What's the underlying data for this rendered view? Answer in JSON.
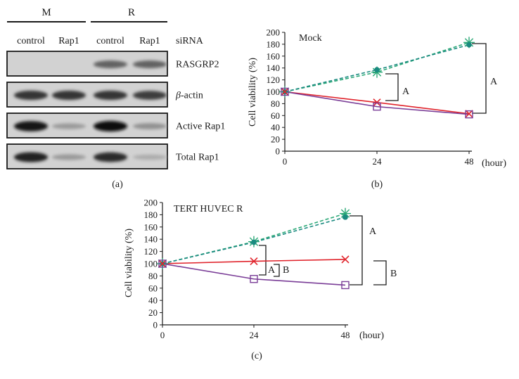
{
  "panel_a": {
    "label": "(a)",
    "groups": [
      "M",
      "R"
    ],
    "lanes": [
      "control",
      "Rap1",
      "control",
      "Rap1"
    ],
    "sirna_label": "siRNA",
    "rows": [
      {
        "name": "RASGRP2",
        "intensity": [
          0.0,
          0.0,
          0.55,
          0.55
        ]
      },
      {
        "name": "β-actin",
        "intensity": [
          0.8,
          0.8,
          0.8,
          0.75
        ]
      },
      {
        "name": "Active Rap1",
        "intensity": [
          0.95,
          0.25,
          1.0,
          0.3
        ]
      },
      {
        "name": "Total Rap1",
        "intensity": [
          0.9,
          0.25,
          0.85,
          0.15
        ]
      }
    ]
  },
  "panel_b": {
    "label": "(b)",
    "annotation": "Mock",
    "bracket_labels": [
      "A",
      "A"
    ],
    "chart_data": {
      "type": "line",
      "x": [
        0,
        24,
        48
      ],
      "x_unit": "(hour)",
      "ylabel": "Cell viability (%)",
      "ylim": [
        0,
        200
      ],
      "yticks": [
        0,
        20,
        40,
        60,
        80,
        100,
        120,
        140,
        160,
        180,
        200
      ],
      "series": [
        {
          "values": [
            100,
            133,
            183
          ],
          "color": "#2aa876",
          "style": "dashed",
          "marker": "asterisk"
        },
        {
          "values": [
            100,
            137,
            179
          ],
          "color": "#1a8a80",
          "style": "dashed",
          "marker": "dot"
        },
        {
          "values": [
            100,
            82,
            63
          ],
          "color": "#e0232b",
          "style": "solid",
          "marker": "x"
        },
        {
          "values": [
            100,
            75,
            62
          ],
          "color": "#7a3d97",
          "style": "solid",
          "marker": "square"
        }
      ]
    }
  },
  "panel_c": {
    "label": "(c)",
    "annotation": "TERT HUVEC R",
    "bracket_labels": [
      "A",
      "B",
      "A",
      "B"
    ],
    "chart_data": {
      "type": "line",
      "x": [
        0,
        24,
        48
      ],
      "x_unit": "(hour)",
      "ylabel": "Cell viability (%)",
      "ylim": [
        0,
        200
      ],
      "yticks": [
        0,
        20,
        40,
        60,
        80,
        100,
        120,
        140,
        160,
        180,
        200
      ],
      "series": [
        {
          "values": [
            100,
            136,
            182
          ],
          "color": "#2aa876",
          "style": "dashed",
          "marker": "asterisk"
        },
        {
          "values": [
            100,
            135,
            176
          ],
          "color": "#1a8a80",
          "style": "dashed",
          "marker": "dot"
        },
        {
          "values": [
            100,
            104,
            107
          ],
          "color": "#e0232b",
          "style": "solid",
          "marker": "x"
        },
        {
          "values": [
            100,
            75,
            65
          ],
          "color": "#7a3d97",
          "style": "solid",
          "marker": "square"
        }
      ]
    }
  }
}
